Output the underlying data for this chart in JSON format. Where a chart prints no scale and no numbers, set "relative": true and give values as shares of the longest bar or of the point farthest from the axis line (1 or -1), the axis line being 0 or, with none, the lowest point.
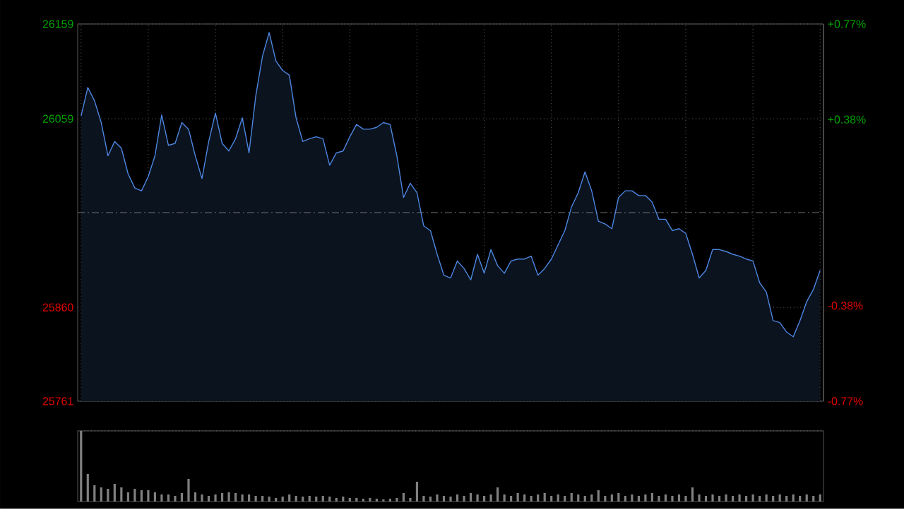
{
  "chart_data": [
    {
      "type": "area",
      "categories": [
        null,
        null,
        null,
        null,
        null,
        null,
        null,
        null,
        null,
        null,
        null,
        null,
        null,
        null,
        null,
        null,
        null,
        null,
        null,
        null,
        null,
        null,
        null,
        null,
        null,
        null,
        null,
        null,
        null,
        null,
        null,
        null,
        null,
        null,
        null,
        null,
        null,
        null,
        null,
        null,
        null,
        null,
        null,
        null,
        null,
        null,
        null,
        null,
        null,
        null,
        null,
        null,
        null,
        null,
        null,
        null,
        null,
        null,
        null,
        null,
        null,
        null,
        null,
        null,
        null,
        null,
        null,
        null,
        null,
        null,
        null,
        null,
        null,
        null,
        null,
        null,
        null,
        null,
        null,
        null,
        null,
        null,
        null,
        null,
        null,
        null,
        null,
        null,
        null,
        null,
        null,
        null,
        null,
        null,
        null,
        null,
        null,
        null,
        null,
        null,
        null,
        null,
        null,
        null,
        null,
        null,
        null,
        null,
        null,
        null,
        null
      ],
      "color": "#4d86e0",
      "values": [
        26062,
        26092,
        26078,
        26055,
        26020,
        26035,
        26028,
        26001,
        25986,
        25983,
        25998,
        26020,
        26063,
        26031,
        26033,
        26055,
        26048,
        26020,
        25996,
        26035,
        26065,
        26033,
        26025,
        26038,
        26060,
        26023,
        26083,
        26125,
        26150,
        26120,
        26110,
        26105,
        26060,
        26035,
        26038,
        26040,
        26038,
        26010,
        26023,
        26025,
        26040,
        26053,
        26048,
        26048,
        26050,
        26055,
        26053,
        26020,
        25976,
        25991,
        25981,
        25946,
        25941,
        25916,
        25894,
        25891,
        25909,
        25901,
        25889,
        25916,
        25896,
        25921,
        25904,
        25896,
        25909,
        25911,
        25911,
        25914,
        25894,
        25901,
        25911,
        25926,
        25941,
        25966,
        25981,
        26003,
        25983,
        25951,
        25948,
        25943,
        25976,
        25983,
        25983,
        25978,
        25978,
        25971,
        25953,
        25953,
        25941,
        25943,
        25938,
        25916,
        25891,
        25899,
        25921,
        25921,
        25919,
        25916,
        25914,
        25911,
        25909,
        25886,
        25876,
        25846,
        25844,
        25834,
        25829,
        25846,
        25866,
        25879,
        25899
      ],
      "ylim": [
        25761,
        26159
      ],
      "yticks": [
        25761,
        25860,
        26059,
        26159
      ],
      "y2lim": [
        -0.77,
        0.77
      ],
      "y2ticks": [
        {
          "value": -0.77,
          "label": "-0.77%"
        },
        {
          "value": -0.38,
          "label": "-0.38%"
        },
        {
          "value": 0.38,
          "label": "+0.38%"
        },
        {
          "value": 0.77,
          "label": "+0.77%"
        }
      ],
      "ref_lines": [
        {
          "axis": "y",
          "value": 25960,
          "color": "#8c8c8c",
          "line_style": "dashed"
        }
      ],
      "grid": true
    },
    {
      "type": "bar",
      "relative": true,
      "color": "#808080",
      "grid": true,
      "categories": [
        null,
        null,
        null,
        null,
        null,
        null,
        null,
        null,
        null,
        null,
        null,
        null,
        null,
        null,
        null,
        null,
        null,
        null,
        null,
        null,
        null,
        null,
        null,
        null,
        null,
        null,
        null,
        null,
        null,
        null,
        null,
        null,
        null,
        null,
        null,
        null,
        null,
        null,
        null,
        null,
        null,
        null,
        null,
        null,
        null,
        null,
        null,
        null,
        null,
        null,
        null,
        null,
        null,
        null,
        null,
        null,
        null,
        null,
        null,
        null,
        null,
        null,
        null,
        null,
        null,
        null,
        null,
        null,
        null,
        null,
        null,
        null,
        null,
        null,
        null,
        null,
        null,
        null,
        null,
        null,
        null,
        null,
        null,
        null,
        null,
        null,
        null,
        null,
        null,
        null,
        null,
        null,
        null,
        null,
        null,
        null,
        null,
        null,
        null,
        null,
        null,
        null,
        null,
        null,
        null,
        null,
        null,
        null,
        null,
        null,
        null
      ],
      "values": [
        1.0,
        0.39,
        0.23,
        0.2,
        0.18,
        0.25,
        0.2,
        0.13,
        0.18,
        0.16,
        0.16,
        0.13,
        0.1,
        0.1,
        0.08,
        0.12,
        0.32,
        0.13,
        0.1,
        0.08,
        0.1,
        0.12,
        0.13,
        0.12,
        0.1,
        0.1,
        0.08,
        0.08,
        0.07,
        0.05,
        0.07,
        0.1,
        0.08,
        0.07,
        0.08,
        0.07,
        0.08,
        0.07,
        0.05,
        0.07,
        0.05,
        0.05,
        0.04,
        0.05,
        0.04,
        0.03,
        0.04,
        0.05,
        0.12,
        0.05,
        0.28,
        0.08,
        0.07,
        0.1,
        0.08,
        0.07,
        0.1,
        0.08,
        0.12,
        0.1,
        0.08,
        0.1,
        0.2,
        0.1,
        0.08,
        0.12,
        0.1,
        0.08,
        0.1,
        0.12,
        0.08,
        0.1,
        0.08,
        0.12,
        0.1,
        0.08,
        0.1,
        0.16,
        0.08,
        0.1,
        0.12,
        0.08,
        0.1,
        0.08,
        0.1,
        0.12,
        0.08,
        0.1,
        0.08,
        0.1,
        0.08,
        0.2,
        0.1,
        0.08,
        0.1,
        0.08,
        0.1,
        0.08,
        0.1,
        0.08,
        0.1,
        0.08,
        0.1,
        0.08,
        0.1,
        0.08,
        0.1,
        0.08,
        0.1,
        0.08,
        0.1
      ]
    }
  ]
}
